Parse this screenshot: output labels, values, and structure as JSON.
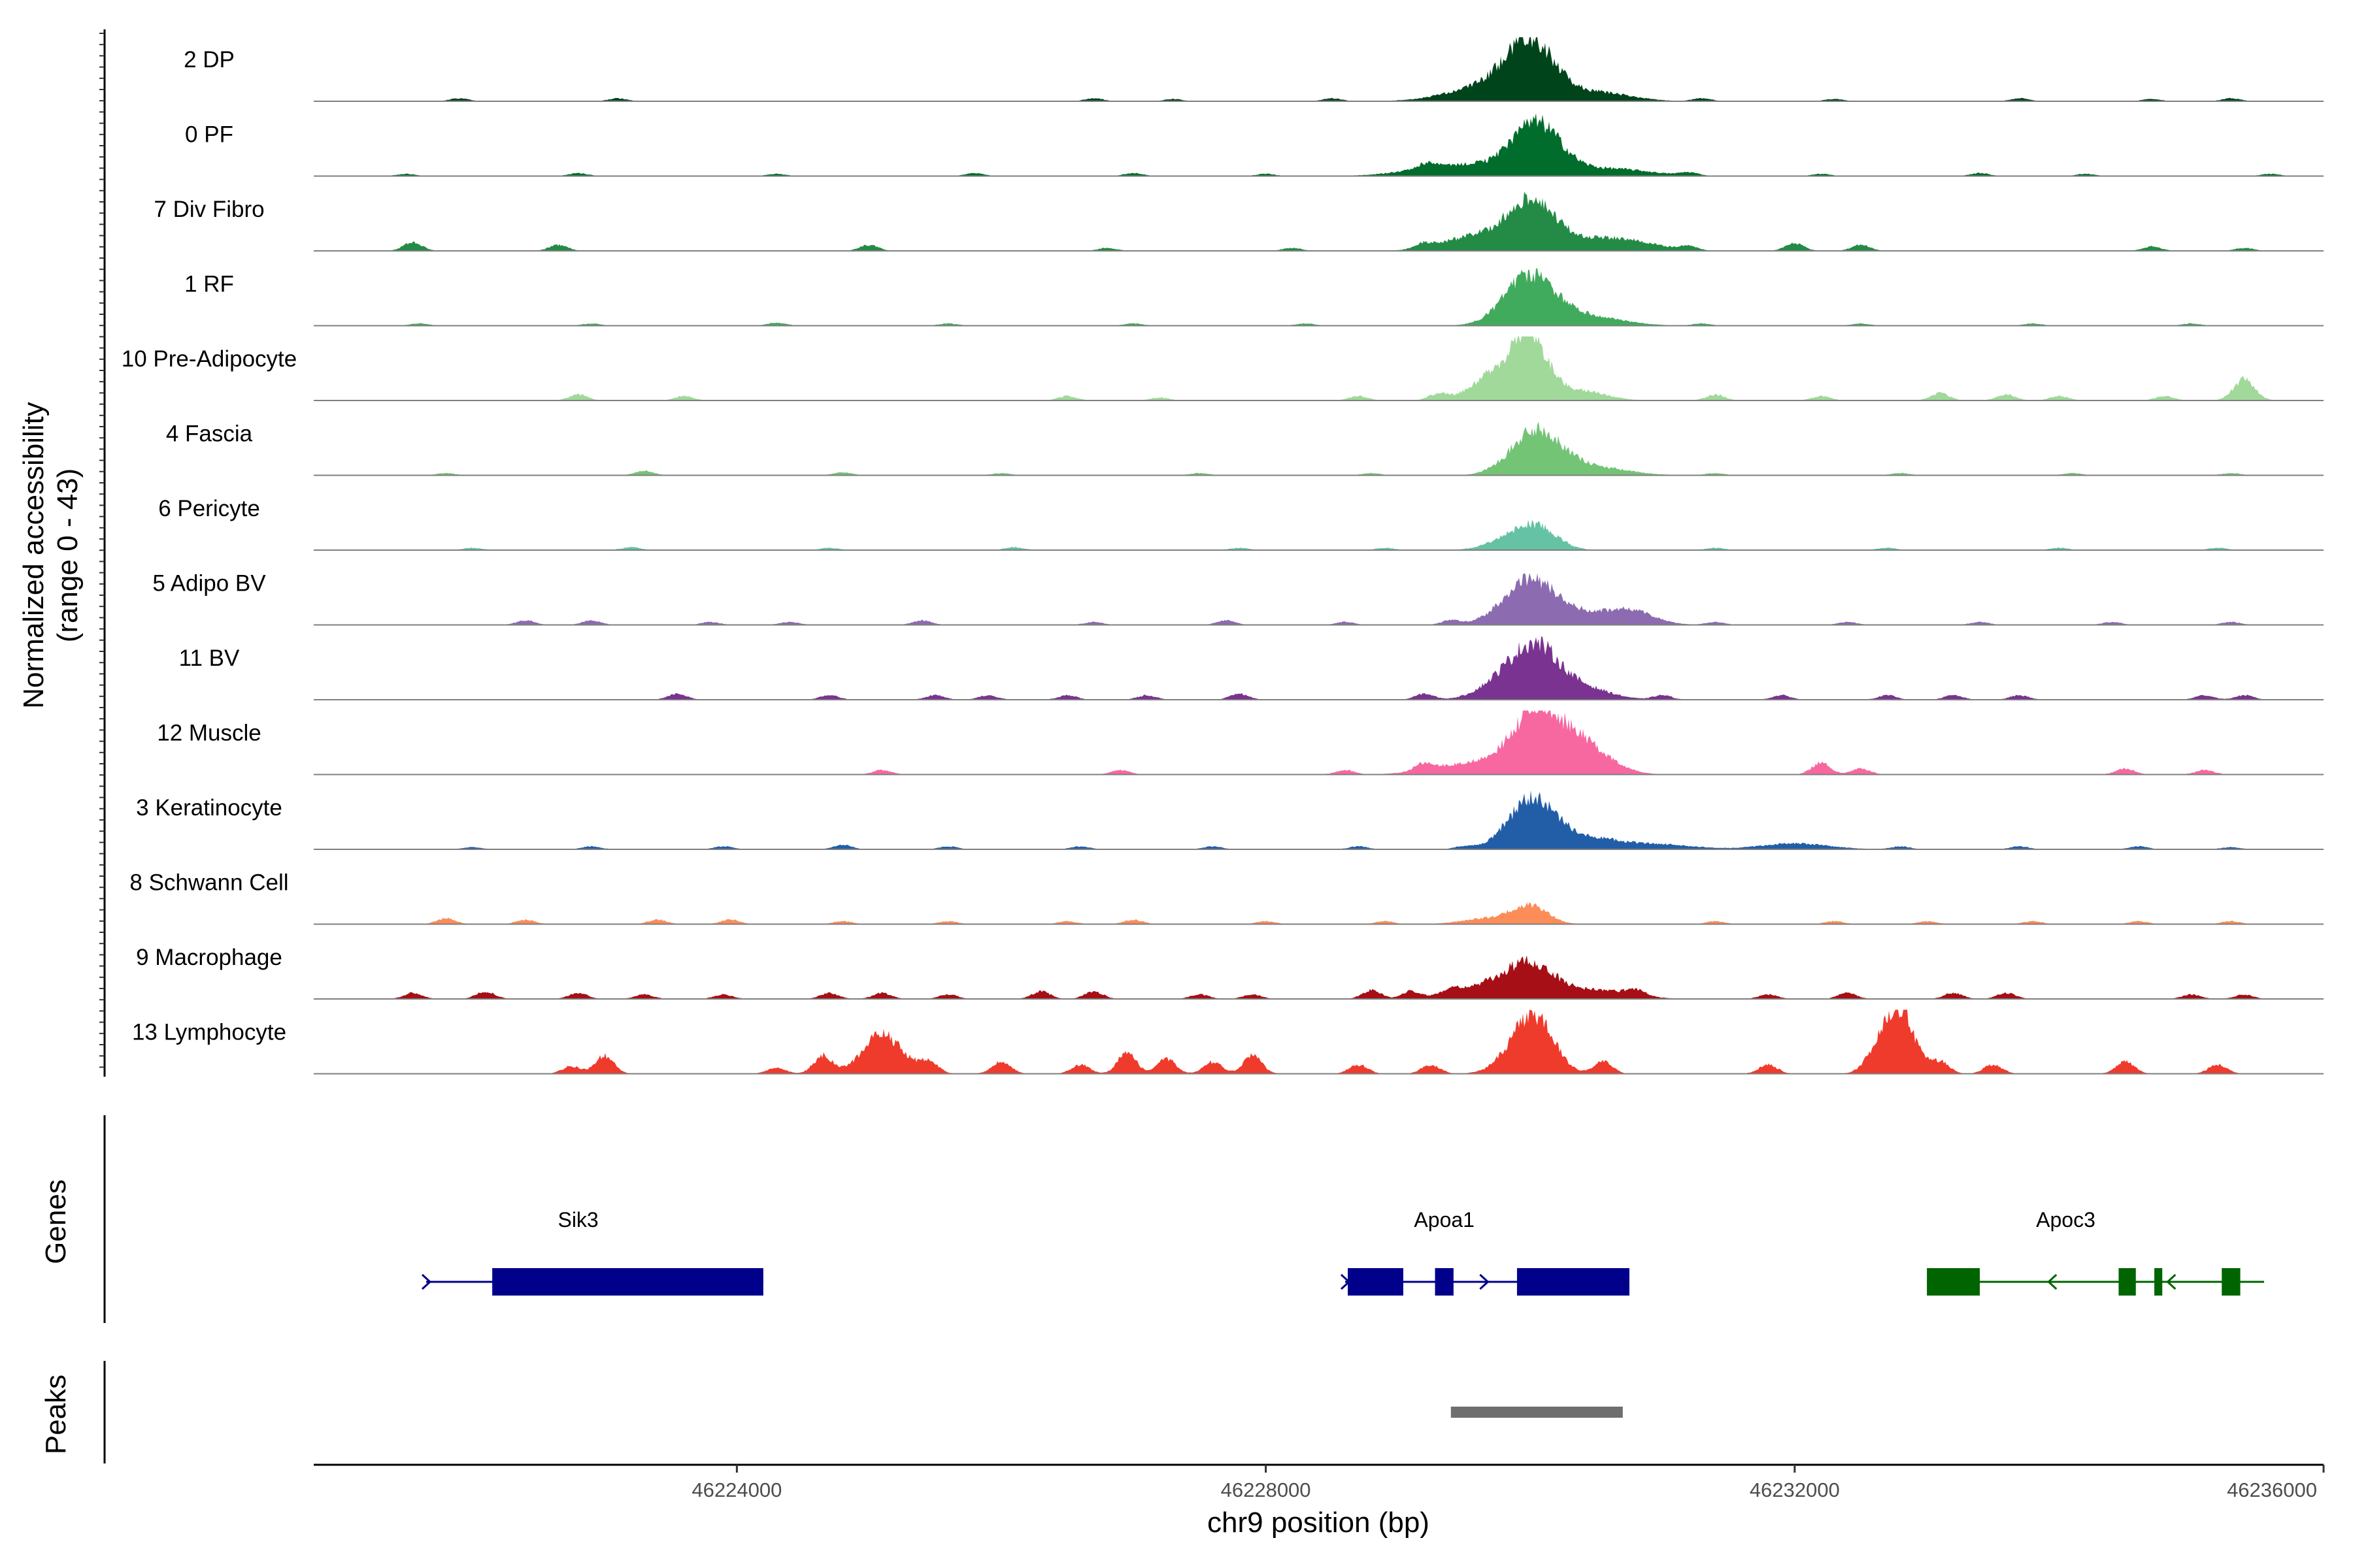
{
  "chart_data": {
    "type": "area",
    "ylabel_line1": "Normalized accessibility",
    "ylabel_line2": "(range 0 - 43)",
    "ylim": [
      0,
      43
    ],
    "xlabel": "chr9 position (bp)",
    "xlim": [
      46220800,
      46236000
    ],
    "xticks": [
      46224000,
      46228000,
      46232000,
      46236000
    ],
    "xtick_labels": [
      "46224000",
      "46228000",
      "46232000",
      "46236000"
    ],
    "tracks": [
      {
        "name": "2 DP",
        "color": "#00441b",
        "peaks": [
          [
            46230000,
            36,
            180
          ],
          [
            46229700,
            10,
            300
          ],
          [
            46230500,
            6,
            250
          ]
        ],
        "noise": [
          [
            46221900,
            2
          ],
          [
            46223100,
            2
          ],
          [
            46226700,
            2
          ],
          [
            46227300,
            1.5
          ],
          [
            46228500,
            2
          ],
          [
            46231300,
            2
          ],
          [
            46232300,
            1.5
          ],
          [
            46233700,
            2
          ],
          [
            46234700,
            1.5
          ],
          [
            46235300,
            2
          ]
        ]
      },
      {
        "name": "0 PF",
        "color": "#006d2c",
        "peaks": [
          [
            46230050,
            33,
            180
          ],
          [
            46229500,
            8,
            350
          ],
          [
            46230600,
            5,
            300
          ]
        ],
        "noise": [
          [
            46221500,
            1.5
          ],
          [
            46222800,
            2
          ],
          [
            46224300,
            1.5
          ],
          [
            46225800,
            2
          ],
          [
            46227000,
            2
          ],
          [
            46228000,
            1.5
          ],
          [
            46229200,
            3
          ],
          [
            46231200,
            2
          ],
          [
            46232200,
            1.5
          ],
          [
            46233400,
            2
          ],
          [
            46234200,
            1.5
          ],
          [
            46235600,
            1.5
          ]
        ]
      },
      {
        "name": "7 Div Fibro",
        "color": "#238b45",
        "peaks": [
          [
            46230000,
            31,
            170
          ],
          [
            46229600,
            10,
            250
          ],
          [
            46230400,
            8,
            250
          ],
          [
            46230800,
            5,
            200
          ]
        ],
        "noise": [
          [
            46221550,
            6
          ],
          [
            46222650,
            4
          ],
          [
            46225000,
            4
          ],
          [
            46226800,
            2
          ],
          [
            46228200,
            2
          ],
          [
            46229200,
            3
          ],
          [
            46231200,
            3
          ],
          [
            46232000,
            5
          ],
          [
            46232500,
            4
          ],
          [
            46234700,
            3
          ],
          [
            46235400,
            2
          ]
        ]
      },
      {
        "name": "1 RF",
        "color": "#41ab5d",
        "peaks": [
          [
            46230000,
            34,
            190
          ],
          [
            46230450,
            6,
            250
          ]
        ],
        "noise": [
          [
            46221600,
            1.5
          ],
          [
            46222900,
            1.5
          ],
          [
            46224300,
            2
          ],
          [
            46225600,
            1.5
          ],
          [
            46227000,
            1.5
          ],
          [
            46228300,
            1.5
          ],
          [
            46231300,
            1.5
          ],
          [
            46232500,
            1.5
          ],
          [
            46233800,
            1.5
          ],
          [
            46235000,
            1.5
          ]
        ]
      },
      {
        "name": "10 Pre-Adipocyte",
        "color": "#a1d99b",
        "peaks": [
          [
            46230000,
            38,
            130
          ],
          [
            46229750,
            18,
            180
          ],
          [
            46230350,
            7,
            200
          ],
          [
            46235400,
            14,
            80
          ]
        ],
        "noise": [
          [
            46222800,
            4
          ],
          [
            46223600,
            3
          ],
          [
            46226500,
            3
          ],
          [
            46227200,
            2
          ],
          [
            46228700,
            3
          ],
          [
            46229300,
            4
          ],
          [
            46231400,
            4
          ],
          [
            46232200,
            3
          ],
          [
            46233100,
            5
          ],
          [
            46233600,
            4
          ],
          [
            46234000,
            3
          ],
          [
            46234800,
            3
          ]
        ]
      },
      {
        "name": "4 Fascia",
        "color": "#74c476",
        "peaks": [
          [
            46230050,
            30,
            190
          ],
          [
            46230500,
            5,
            250
          ]
        ],
        "noise": [
          [
            46221800,
            1.5
          ],
          [
            46223300,
            3
          ],
          [
            46224800,
            2
          ],
          [
            46226000,
            1.5
          ],
          [
            46227500,
            1.5
          ],
          [
            46228800,
            1.5
          ],
          [
            46231400,
            1.5
          ],
          [
            46232800,
            1.5
          ],
          [
            46234100,
            1.5
          ],
          [
            46235300,
            1.5
          ]
        ]
      },
      {
        "name": "6 Pericyte",
        "color": "#66c2a4",
        "peaks": [
          [
            46230050,
            16,
            150
          ],
          [
            46229800,
            6,
            150
          ]
        ],
        "noise": [
          [
            46222000,
            1.5
          ],
          [
            46223200,
            2
          ],
          [
            46224700,
            1.5
          ],
          [
            46226100,
            2
          ],
          [
            46227800,
            1.5
          ],
          [
            46228900,
            1.5
          ],
          [
            46231400,
            1.5
          ],
          [
            46232700,
            1.5
          ],
          [
            46234000,
            1.5
          ],
          [
            46235200,
            1.5
          ]
        ]
      },
      {
        "name": "5 Adipo BV",
        "color": "#8c6bb1",
        "peaks": [
          [
            46230000,
            30,
            200
          ],
          [
            46230550,
            8,
            250
          ],
          [
            46230800,
            5,
            150
          ]
        ],
        "noise": [
          [
            46222400,
            3
          ],
          [
            46222900,
            3
          ],
          [
            46223800,
            2
          ],
          [
            46224400,
            2
          ],
          [
            46225400,
            3
          ],
          [
            46226700,
            2
          ],
          [
            46227700,
            3
          ],
          [
            46228600,
            2
          ],
          [
            46229400,
            3
          ],
          [
            46231400,
            2
          ],
          [
            46232400,
            2
          ],
          [
            46233400,
            2
          ],
          [
            46234400,
            2
          ],
          [
            46235300,
            2
          ]
        ]
      },
      {
        "name": "11 BV",
        "color": "#7a3390",
        "peaks": [
          [
            46230050,
            32,
            170
          ],
          [
            46229800,
            12,
            180
          ],
          [
            46230400,
            8,
            200
          ]
        ],
        "noise": [
          [
            46223550,
            4
          ],
          [
            46224700,
            3
          ],
          [
            46225500,
            3
          ],
          [
            46225900,
            3
          ],
          [
            46226500,
            3
          ],
          [
            46227100,
            3
          ],
          [
            46227800,
            4
          ],
          [
            46229200,
            4
          ],
          [
            46231000,
            3
          ],
          [
            46231900,
            3
          ],
          [
            46232700,
            3
          ],
          [
            46233200,
            3
          ],
          [
            46233700,
            3
          ],
          [
            46235100,
            3
          ],
          [
            46235400,
            3
          ]
        ]
      },
      {
        "name": "12 Muscle",
        "color": "#f768a1",
        "peaks": [
          [
            46230050,
            40,
            180
          ],
          [
            46230400,
            20,
            200
          ],
          [
            46229600,
            8,
            300
          ]
        ],
        "noise": [
          [
            46225100,
            3
          ],
          [
            46226900,
            3
          ],
          [
            46228600,
            3
          ],
          [
            46229200,
            5
          ],
          [
            46232200,
            8
          ],
          [
            46232500,
            4
          ],
          [
            46234500,
            4
          ],
          [
            46235100,
            3
          ]
        ]
      },
      {
        "name": "3 Keratinocyte",
        "color": "#225ea8",
        "peaks": [
          [
            46230000,
            30,
            170
          ],
          [
            46230350,
            9,
            280
          ],
          [
            46232000,
            4,
            250
          ],
          [
            46231000,
            3,
            250
          ]
        ],
        "noise": [
          [
            46222000,
            1.5
          ],
          [
            46222900,
            2
          ],
          [
            46223900,
            2
          ],
          [
            46224800,
            3
          ],
          [
            46225600,
            2
          ],
          [
            46226600,
            2
          ],
          [
            46227600,
            2
          ],
          [
            46228700,
            2
          ],
          [
            46229500,
            2
          ],
          [
            46232800,
            2
          ],
          [
            46233700,
            2
          ],
          [
            46234600,
            2
          ],
          [
            46235300,
            1.5
          ]
        ]
      },
      {
        "name": "8 Schwann Cell",
        "color": "#fc8d59",
        "peaks": [
          [
            46230000,
            12,
            130
          ],
          [
            46229700,
            4,
            200
          ]
        ],
        "noise": [
          [
            46221800,
            4
          ],
          [
            46222400,
            3
          ],
          [
            46223400,
            3
          ],
          [
            46223950,
            3
          ],
          [
            46224800,
            2
          ],
          [
            46225600,
            2
          ],
          [
            46226500,
            2
          ],
          [
            46227000,
            3
          ],
          [
            46228000,
            2
          ],
          [
            46228900,
            2
          ],
          [
            46231400,
            2
          ],
          [
            46232300,
            2
          ],
          [
            46233000,
            2
          ],
          [
            46233800,
            2
          ],
          [
            46234600,
            2
          ],
          [
            46235300,
            2
          ]
        ]
      },
      {
        "name": "9 Macrophage",
        "color": "#a50f15",
        "peaks": [
          [
            46230000,
            22,
            180
          ],
          [
            46229650,
            8,
            220
          ],
          [
            46230500,
            6,
            250
          ]
        ],
        "noise": [
          [
            46221550,
            4
          ],
          [
            46222100,
            5
          ],
          [
            46222800,
            4
          ],
          [
            46223300,
            3
          ],
          [
            46223900,
            3
          ],
          [
            46224700,
            4
          ],
          [
            46225100,
            4
          ],
          [
            46225600,
            3
          ],
          [
            46226300,
            5
          ],
          [
            46226700,
            5
          ],
          [
            46227500,
            3
          ],
          [
            46227900,
            3
          ],
          [
            46228800,
            6
          ],
          [
            46229100,
            5
          ],
          [
            46229400,
            4
          ],
          [
            46230800,
            4
          ],
          [
            46231800,
            3
          ],
          [
            46232400,
            4
          ],
          [
            46233200,
            4
          ],
          [
            46233600,
            4
          ],
          [
            46235000,
            3
          ],
          [
            46235400,
            3
          ]
        ]
      },
      {
        "name": "13 Lymphocyte",
        "color": "#ef3b2c",
        "peaks": [
          [
            46230050,
            32,
            140
          ],
          [
            46229900,
            12,
            150
          ],
          [
            46232800,
            40,
            110
          ],
          [
            46232650,
            15,
            100
          ],
          [
            46225100,
            26,
            150
          ]
        ],
        "noise": [
          [
            46222750,
            5
          ],
          [
            46223000,
            12
          ],
          [
            46224300,
            4
          ],
          [
            46224650,
            12
          ],
          [
            46225450,
            8
          ],
          [
            46226000,
            8
          ],
          [
            46226600,
            6
          ],
          [
            46226950,
            14
          ],
          [
            46227250,
            10
          ],
          [
            46227600,
            8
          ],
          [
            46227900,
            12
          ],
          [
            46228700,
            6
          ],
          [
            46229250,
            6
          ],
          [
            46230550,
            8
          ],
          [
            46231800,
            6
          ],
          [
            46233100,
            8
          ],
          [
            46233500,
            6
          ],
          [
            46234500,
            8
          ],
          [
            46235200,
            6
          ]
        ]
      }
    ],
    "genes_panel_label": "Genes",
    "genes": [
      {
        "name": "Sik3",
        "label_x": 46222800,
        "start": 46221650,
        "end": 46224200,
        "strand": "+",
        "color": "#00008b",
        "exons": [
          [
            46222150,
            46224200
          ]
        ],
        "arrows": [
          46221650
        ]
      },
      {
        "name": "Apoa1",
        "label_x": 46229350,
        "start": 46228600,
        "end": 46230750,
        "strand": "+",
        "color": "#00008b",
        "exons": [
          [
            46228620,
            46229040
          ],
          [
            46229280,
            46229420
          ],
          [
            46229900,
            46230750
          ]
        ],
        "arrows": [
          46228600,
          46229650
        ]
      },
      {
        "name": "Apoc3",
        "label_x": 46234050,
        "start": 46233000,
        "end": 46235550,
        "strand": "-",
        "color": "#006400",
        "exons": [
          [
            46233000,
            46233400
          ],
          [
            46234450,
            46234580
          ],
          [
            46234720,
            46234780
          ],
          [
            46235230,
            46235370
          ]
        ],
        "arrows": [
          46233950,
          46234850
        ]
      }
    ],
    "peaks_panel_label": "Peaks",
    "peak_regions": [
      [
        46229400,
        46230700
      ]
    ],
    "peak_color": "#6e6e6e"
  }
}
